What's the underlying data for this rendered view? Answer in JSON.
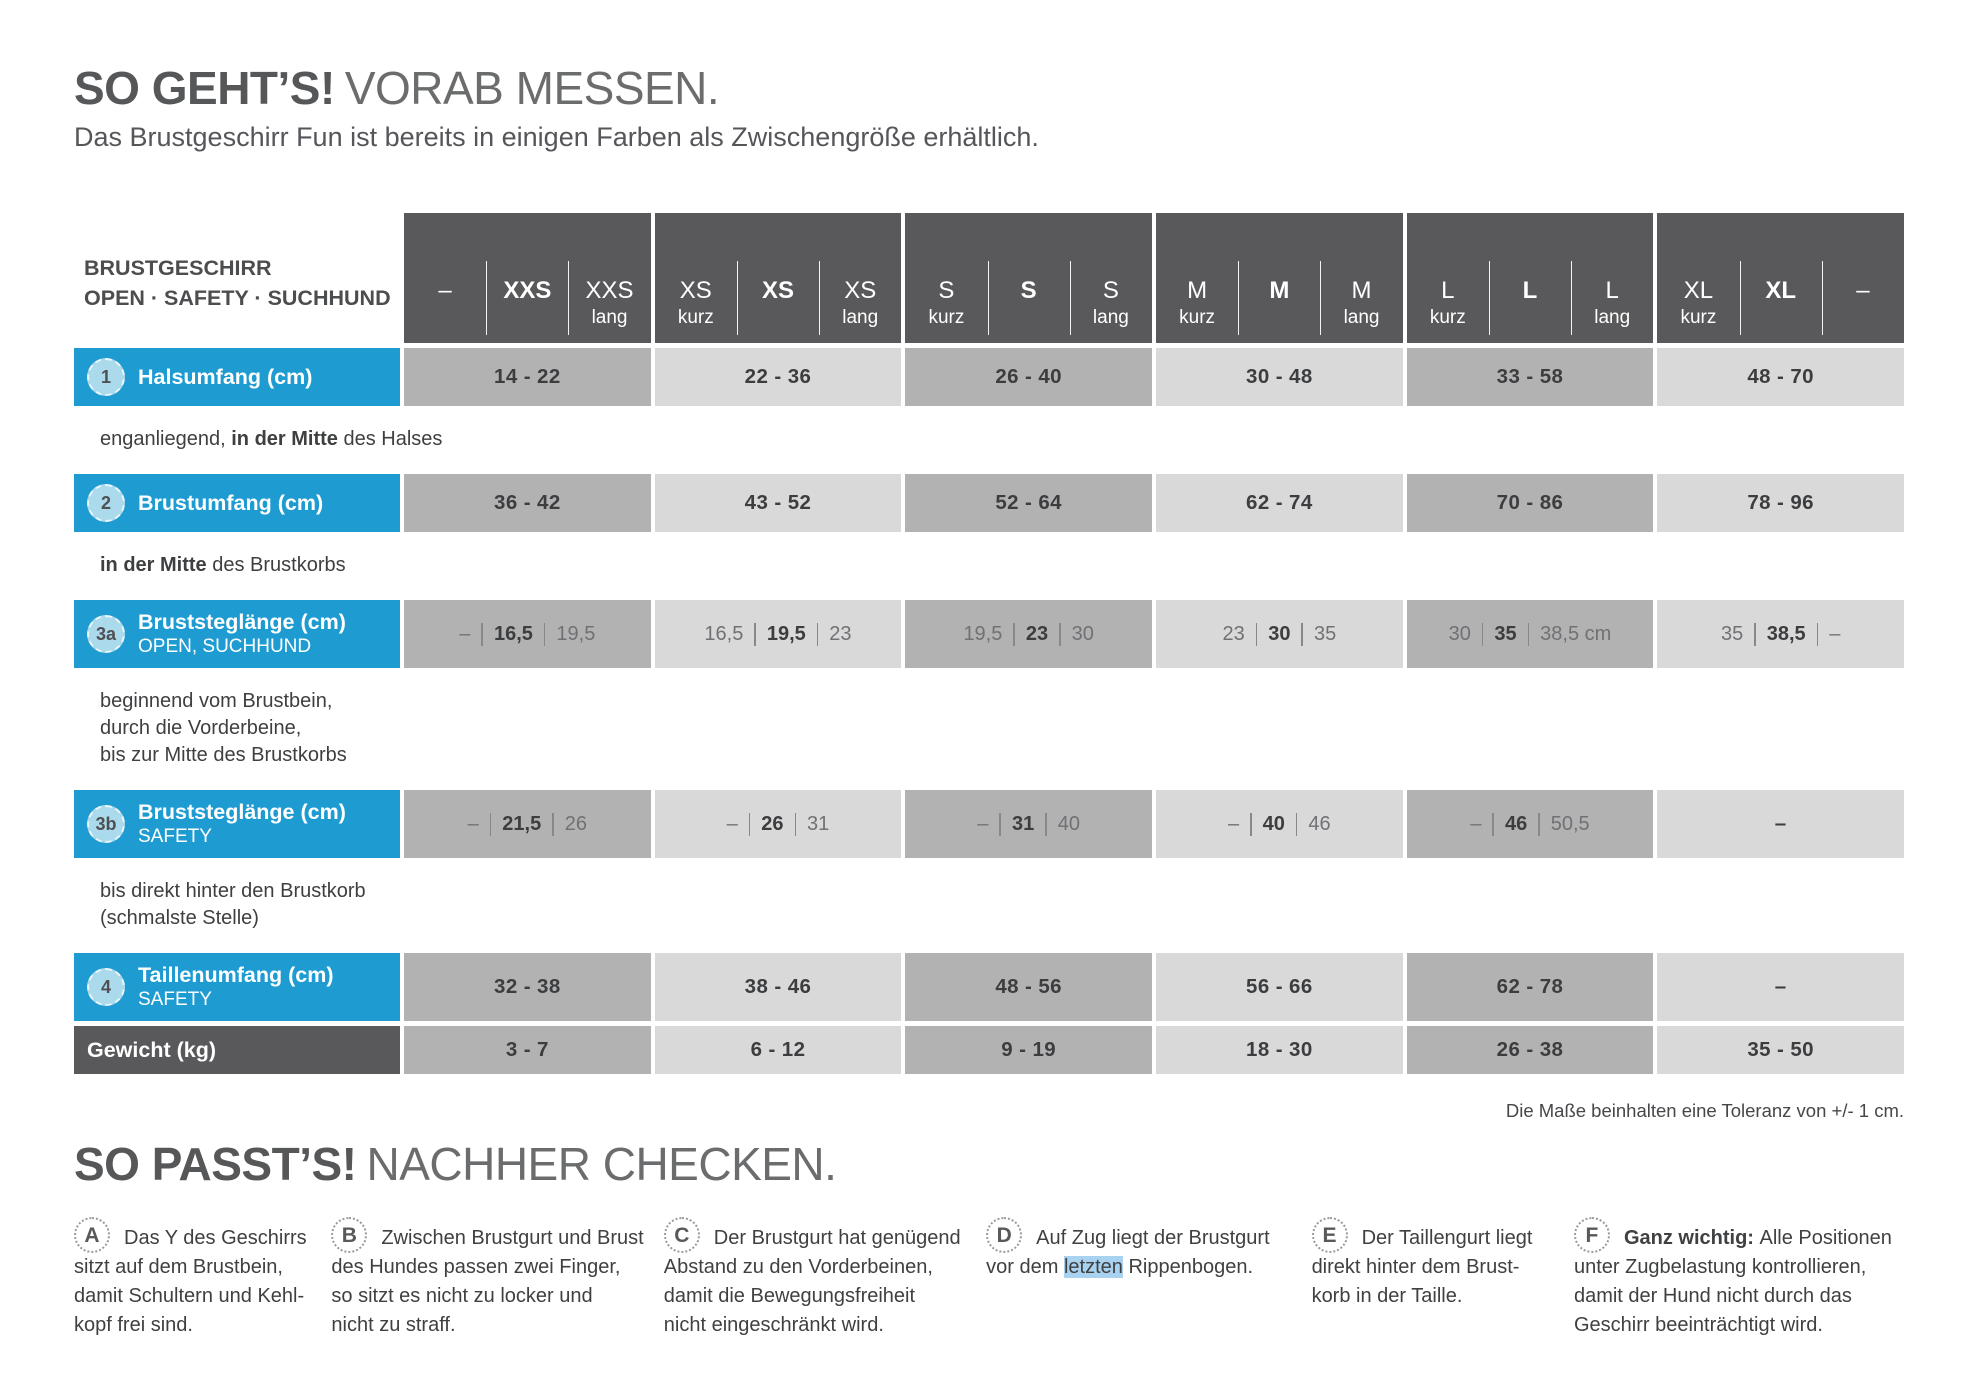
{
  "colors": {
    "brand_blue": "#1e9cd2",
    "header_dark_gray": "#59595b",
    "cell_gray_dark": "#b2b2b3",
    "cell_gray_light": "#d9d9da",
    "badge_light_blue": "#abdaed",
    "highlight_blue": "#a9d2f0"
  },
  "header": {
    "title_bold": "SO GEHT’S!",
    "title_rest": "VORAB MESSEN.",
    "subtitle": "Das Brustgeschirr Fun ist bereits in einigen Farben als Zwischengröße erhältlich."
  },
  "table": {
    "corner_line1": "BRUSTGESCHIRR",
    "corner_line2": "OPEN · SAFETY · SUCHHUND",
    "size_groups": [
      [
        {
          "label": "–",
          "sub": "",
          "bold": false
        },
        {
          "label": "XXS",
          "sub": "",
          "bold": true
        },
        {
          "label": "XXS",
          "sub": "lang",
          "bold": false
        }
      ],
      [
        {
          "label": "XS",
          "sub": "kurz",
          "bold": false
        },
        {
          "label": "XS",
          "sub": "",
          "bold": true
        },
        {
          "label": "XS",
          "sub": "lang",
          "bold": false
        }
      ],
      [
        {
          "label": "S",
          "sub": "kurz",
          "bold": false
        },
        {
          "label": "S",
          "sub": "",
          "bold": true
        },
        {
          "label": "S",
          "sub": "lang",
          "bold": false
        }
      ],
      [
        {
          "label": "M",
          "sub": "kurz",
          "bold": false
        },
        {
          "label": "M",
          "sub": "",
          "bold": true
        },
        {
          "label": "M",
          "sub": "lang",
          "bold": false
        }
      ],
      [
        {
          "label": "L",
          "sub": "kurz",
          "bold": false
        },
        {
          "label": "L",
          "sub": "",
          "bold": true
        },
        {
          "label": "L",
          "sub": "lang",
          "bold": false
        }
      ],
      [
        {
          "label": "XL",
          "sub": "kurz",
          "bold": false
        },
        {
          "label": "XL",
          "sub": "",
          "bold": true
        },
        {
          "label": "–",
          "sub": "",
          "bold": false
        }
      ]
    ],
    "rows": [
      {
        "id": "1",
        "badge": "1",
        "style": "blue",
        "label": "Halsumfang (cm)",
        "sublabel": "",
        "cells": [
          {
            "type": "single",
            "value": "14 - 22"
          },
          {
            "type": "single",
            "value": "22 - 36"
          },
          {
            "type": "single",
            "value": "26 - 40"
          },
          {
            "type": "single",
            "value": "30 - 48"
          },
          {
            "type": "single",
            "value": "33 - 58"
          },
          {
            "type": "single",
            "value": "48 - 70"
          }
        ],
        "note": [
          {
            "text": "enganliegend, "
          },
          {
            "text": "in der Mitte",
            "bold": true
          },
          {
            "text": " des Halses"
          }
        ]
      },
      {
        "id": "2",
        "badge": "2",
        "style": "blue",
        "label": "Brustumfang (cm)",
        "sublabel": "",
        "cells": [
          {
            "type": "single",
            "value": "36 - 42"
          },
          {
            "type": "single",
            "value": "43 - 52"
          },
          {
            "type": "single",
            "value": "52 - 64"
          },
          {
            "type": "single",
            "value": "62 - 74"
          },
          {
            "type": "single",
            "value": "70 - 86"
          },
          {
            "type": "single",
            "value": "78 - 96"
          }
        ],
        "note": [
          {
            "text": "in der Mitte",
            "bold": true
          },
          {
            "text": " des Brustkorbs"
          }
        ]
      },
      {
        "id": "3a",
        "badge": "3a",
        "style": "blue",
        "label": "Bruststeglänge (cm)",
        "sublabel": "OPEN, SUCHHUND",
        "cells": [
          {
            "type": "triple",
            "values": [
              "–",
              "16,5",
              "19,5"
            ]
          },
          {
            "type": "triple",
            "values": [
              "16,5",
              "19,5",
              "23"
            ]
          },
          {
            "type": "triple",
            "values": [
              "19,5",
              "23",
              "30"
            ]
          },
          {
            "type": "triple",
            "values": [
              "23",
              "30",
              "35"
            ]
          },
          {
            "type": "triple",
            "values": [
              "30",
              "35",
              "38,5 cm"
            ]
          },
          {
            "type": "triple",
            "values": [
              "35",
              "38,5",
              "–"
            ]
          }
        ],
        "note": [
          {
            "text": "beginnend vom Brustbein,\ndurch die Vorderbeine,\nbis zur Mitte des Brustkorbs"
          }
        ]
      },
      {
        "id": "3b",
        "badge": "3b",
        "style": "blue",
        "label": "Bruststeglänge (cm)",
        "sublabel": "SAFETY",
        "cells": [
          {
            "type": "triple",
            "values": [
              "–",
              "21,5",
              "26"
            ]
          },
          {
            "type": "triple",
            "values": [
              "–",
              "26",
              "31"
            ]
          },
          {
            "type": "triple",
            "values": [
              "–",
              "31",
              "40"
            ]
          },
          {
            "type": "triple",
            "values": [
              "–",
              "40",
              "46"
            ]
          },
          {
            "type": "triple",
            "values": [
              "–",
              "46",
              "50,5"
            ]
          },
          {
            "type": "single",
            "value": "–"
          }
        ],
        "note": [
          {
            "text": "bis direkt hinter den Brustkorb\n(schmalste Stelle)"
          }
        ]
      },
      {
        "id": "4",
        "badge": "4",
        "style": "blue",
        "label": "Taillenumfang (cm)",
        "sublabel": "SAFETY",
        "cells": [
          {
            "type": "single",
            "value": "32 - 38"
          },
          {
            "type": "single",
            "value": "38 - 46"
          },
          {
            "type": "single",
            "value": "48 - 56"
          },
          {
            "type": "single",
            "value": "56 - 66"
          },
          {
            "type": "single",
            "value": "62 - 78"
          },
          {
            "type": "single",
            "value": "–"
          }
        ],
        "note": null
      },
      {
        "id": "gewicht",
        "badge": "",
        "style": "dark",
        "label": "Gewicht (kg)",
        "sublabel": "",
        "cells": [
          {
            "type": "single",
            "value": "3 - 7"
          },
          {
            "type": "single",
            "value": "6 - 12"
          },
          {
            "type": "single",
            "value": "9 - 19"
          },
          {
            "type": "single",
            "value": "18 - 30"
          },
          {
            "type": "single",
            "value": "26 - 38"
          },
          {
            "type": "single",
            "value": "35 - 50"
          }
        ],
        "note": null
      }
    ],
    "tolerance_note": "Die Maße beinhalten eine Toleranz von +/- 1 cm."
  },
  "section2": {
    "title_bold": "SO PASST’S!",
    "title_rest": "NACHHER CHECKEN.",
    "items": [
      {
        "letter": "A",
        "width": "w240",
        "segments": [
          {
            "text": "Das Y des Geschirrs\nsitzt auf dem Brustbein,\ndamit Schultern und Kehl-\nkopf frei sind."
          }
        ]
      },
      {
        "letter": "B",
        "width": "w315",
        "segments": [
          {
            "text": "Zwischen Brustgurt und Brust\ndes Hundes passen zwei Finger,\nso sitzt es nicht zu locker und\nnicht zu straff."
          }
        ]
      },
      {
        "letter": "C",
        "width": "w305",
        "segments": [
          {
            "text": "Der Brustgurt hat genügend\nAbstand zu den Vorderbeinen,\ndamit die Bewegungsfreiheit\nnicht eingeschränkt wird."
          }
        ]
      },
      {
        "letter": "D",
        "width": "w308",
        "segments": [
          {
            "text": "Auf Zug liegt der Brustgurt\nvor dem "
          },
          {
            "text": "letzten",
            "highlight": true
          },
          {
            "text": " Rippenbogen."
          }
        ]
      },
      {
        "letter": "E",
        "width": "w245",
        "segments": [
          {
            "text": "Der Taillengurt liegt\ndirekt hinter dem Brust-\nkorb in der Taille."
          }
        ]
      },
      {
        "letter": "F",
        "width": "w330",
        "segments": [
          {
            "text": "Ganz wichtig: ",
            "bold": true
          },
          {
            "text": "Alle Positionen\nunter Zugbelastung kontrollieren,\ndamit der Hund nicht durch das\nGeschirr beeinträchtigt wird."
          }
        ]
      }
    ]
  }
}
